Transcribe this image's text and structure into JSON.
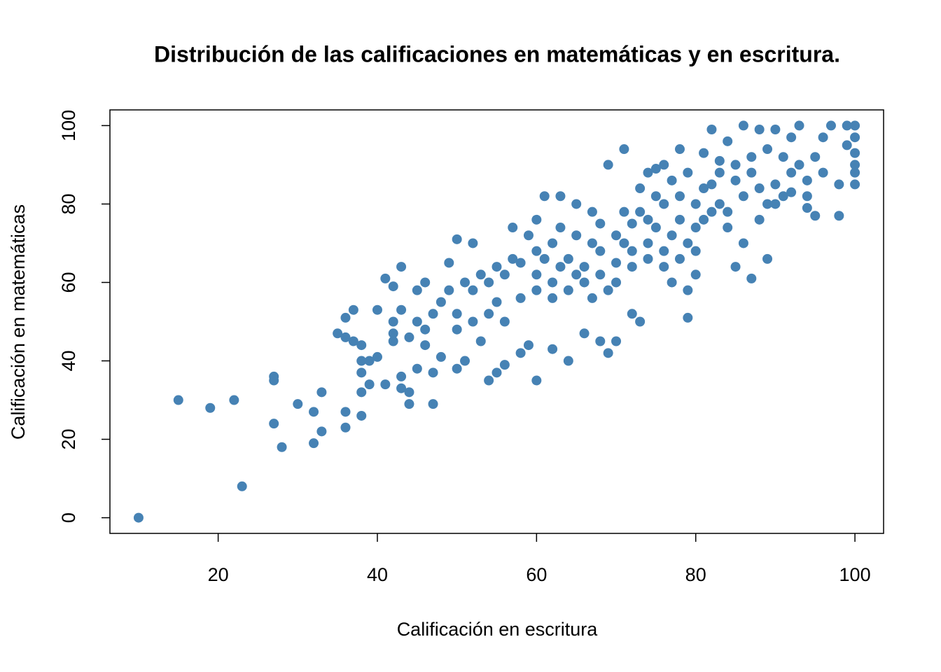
{
  "chart_data": {
    "type": "scatter",
    "title": "Distribución de las calificaciones en matemáticas y en escritura.",
    "x_label": "Calificación en escritura",
    "y_label": "Calificación en matemáticas",
    "color": "#4682b4",
    "xlim": [
      6.4,
      103.6
    ],
    "ylim": [
      -4,
      104
    ],
    "xticks": [
      20,
      40,
      60,
      80,
      100
    ],
    "yticks": [
      0,
      20,
      40,
      60,
      80,
      100
    ],
    "x": [
      10,
      15,
      19,
      22,
      23,
      27,
      27,
      27,
      28,
      30,
      32,
      32,
      33,
      33,
      35,
      36,
      36,
      36,
      36,
      37,
      37,
      38,
      38,
      38,
      38,
      38,
      39,
      39,
      40,
      40,
      41,
      41,
      42,
      42,
      42,
      43,
      43,
      43,
      43,
      44,
      44,
      45,
      45,
      46,
      46,
      47,
      47,
      48,
      49,
      50,
      50,
      51,
      52,
      53,
      54,
      55,
      56,
      57,
      58,
      59,
      60,
      60,
      61,
      62,
      63,
      64,
      65,
      66,
      67,
      68,
      69,
      69,
      70,
      71,
      72,
      73,
      74,
      75,
      76,
      77,
      78,
      79,
      79,
      80,
      81,
      82,
      83,
      84,
      85,
      86,
      87,
      88,
      89,
      90,
      91,
      92,
      93,
      94,
      95,
      96,
      97,
      98,
      98,
      99,
      99,
      100,
      100,
      100,
      100,
      100,
      100,
      45,
      48,
      50,
      52,
      54,
      55,
      56,
      58,
      60,
      60,
      62,
      62,
      64,
      65,
      66,
      67,
      68,
      68,
      70,
      70,
      72,
      72,
      73,
      74,
      75,
      76,
      76,
      77,
      78,
      78,
      79,
      80,
      80,
      81,
      82,
      83,
      84,
      85,
      86,
      87,
      88,
      89,
      90,
      91,
      92,
      93,
      94,
      95,
      56,
      58,
      60,
      62,
      64,
      66,
      68,
      70,
      72,
      74,
      76,
      78,
      80,
      50,
      52,
      54,
      53,
      57,
      59,
      63,
      65,
      67,
      69,
      71,
      73,
      75,
      77,
      79,
      81,
      83,
      85,
      87,
      89,
      46,
      44,
      42,
      47,
      49,
      51,
      55,
      61,
      63,
      71,
      74,
      82,
      84,
      86,
      88,
      90,
      92,
      94,
      96
    ],
    "values": [
      0,
      30,
      28,
      30,
      8,
      36,
      35,
      24,
      18,
      29,
      27,
      19,
      32,
      22,
      47,
      51,
      46,
      27,
      23,
      53,
      45,
      44,
      40,
      37,
      32,
      26,
      40,
      34,
      53,
      41,
      61,
      34,
      59,
      50,
      47,
      64,
      53,
      36,
      33,
      29,
      32,
      58,
      38,
      60,
      44,
      29,
      37,
      41,
      65,
      38,
      71,
      40,
      70,
      45,
      35,
      37,
      39,
      74,
      42,
      44,
      35,
      76,
      82,
      43,
      82,
      40,
      80,
      47,
      78,
      45,
      90,
      42,
      45,
      94,
      52,
      50,
      88,
      89,
      90,
      60,
      94,
      51,
      58,
      62,
      93,
      99,
      91,
      96,
      64,
      100,
      61,
      99,
      66,
      99,
      92,
      97,
      100,
      79,
      77,
      97,
      100,
      77,
      85,
      100,
      95,
      100,
      97,
      93,
      90,
      85,
      88,
      50,
      55,
      52,
      58,
      60,
      55,
      62,
      65,
      62,
      68,
      70,
      60,
      66,
      72,
      64,
      70,
      68,
      75,
      72,
      65,
      75,
      68,
      78,
      70,
      74,
      80,
      68,
      72,
      82,
      76,
      70,
      80,
      74,
      76,
      85,
      80,
      78,
      86,
      82,
      88,
      84,
      80,
      85,
      82,
      88,
      90,
      86,
      92,
      50,
      56,
      58,
      56,
      58,
      60,
      62,
      60,
      64,
      66,
      64,
      66,
      68,
      48,
      50,
      52,
      62,
      66,
      72,
      74,
      62,
      56,
      58,
      78,
      84,
      82,
      86,
      88,
      84,
      88,
      90,
      92,
      94,
      48,
      46,
      45,
      52,
      58,
      60,
      64,
      66,
      64,
      70,
      76,
      78,
      74,
      70,
      76,
      80,
      83,
      82,
      88
    ]
  }
}
